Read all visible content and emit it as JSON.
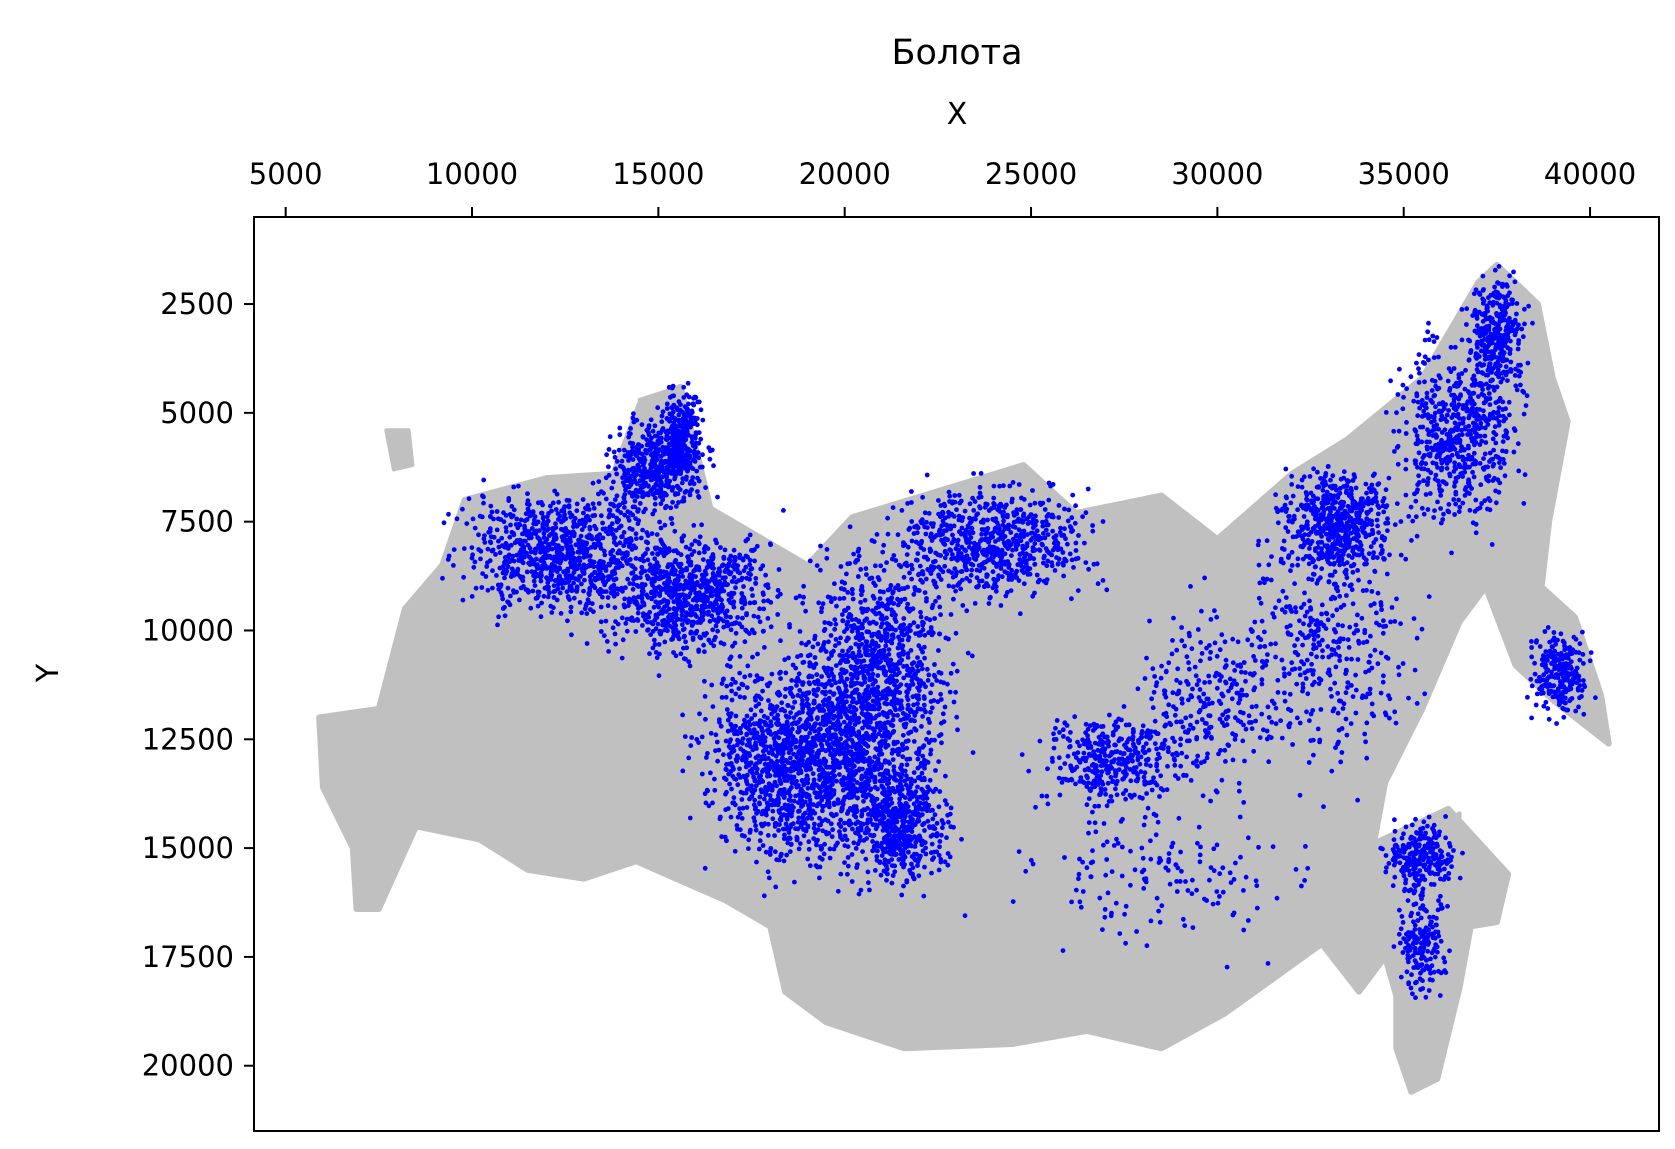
{
  "chart_data": {
    "type": "scatter",
    "title": "Болота",
    "xlabel": "X",
    "ylabel": "Y",
    "x_axis_position": "top",
    "y_axis_inverted": true,
    "xlim": [
      4150,
      41850
    ],
    "ylim": [
      21500,
      500
    ],
    "xticks": [
      5000,
      10000,
      15000,
      20000,
      25000,
      30000,
      35000,
      40000
    ],
    "xtick_labels": [
      "5000",
      "10000",
      "15000",
      "20000",
      "25000",
      "30000",
      "35000",
      "40000"
    ],
    "yticks": [
      2500,
      5000,
      7500,
      10000,
      12500,
      15000,
      17500,
      20000
    ],
    "ytick_labels": [
      "2500",
      "5000",
      "7500",
      "10000",
      "12500",
      "15000",
      "17500",
      "20000"
    ],
    "grid": false,
    "colors": {
      "background_layer": "#c0c0c0",
      "points": "#0000ff"
    },
    "background_layer": {
      "type": "area",
      "outline": [
        [
          5900,
          12000
        ],
        [
          7500,
          11800
        ],
        [
          8200,
          9500
        ],
        [
          9200,
          8500
        ],
        [
          9800,
          7000
        ],
        [
          12000,
          6500
        ],
        [
          13800,
          6400
        ],
        [
          14500,
          4800
        ],
        [
          15600,
          4400
        ],
        [
          16400,
          7200
        ],
        [
          19000,
          8500
        ],
        [
          20200,
          7400
        ],
        [
          24800,
          6200
        ],
        [
          26200,
          7300
        ],
        [
          28500,
          6900
        ],
        [
          30000,
          7900
        ],
        [
          32000,
          6400
        ],
        [
          33500,
          5600
        ],
        [
          35500,
          4200
        ],
        [
          37000,
          2000
        ],
        [
          37500,
          1600
        ],
        [
          38600,
          2500
        ],
        [
          39000,
          4200
        ],
        [
          39400,
          5200
        ],
        [
          38900,
          7500
        ],
        [
          38700,
          9000
        ],
        [
          39600,
          9700
        ],
        [
          40300,
          11500
        ],
        [
          40500,
          12600
        ],
        [
          39000,
          11600
        ],
        [
          38000,
          10800
        ],
        [
          37200,
          9000
        ],
        [
          36500,
          9800
        ],
        [
          35500,
          11800
        ],
        [
          34500,
          13500
        ],
        [
          34200,
          14900
        ],
        [
          36200,
          14100
        ],
        [
          37800,
          15600
        ],
        [
          37500,
          16700
        ],
        [
          36800,
          16800
        ],
        [
          36500,
          18200
        ],
        [
          35900,
          20300
        ],
        [
          35200,
          20600
        ],
        [
          34800,
          19600
        ],
        [
          34800,
          18400
        ],
        [
          34500,
          17500
        ],
        [
          33800,
          18300
        ],
        [
          32800,
          17200
        ],
        [
          31500,
          18000
        ],
        [
          30200,
          18800
        ],
        [
          28500,
          19600
        ],
        [
          26500,
          19200
        ],
        [
          24500,
          19500
        ],
        [
          21600,
          19600
        ],
        [
          19500,
          19000
        ],
        [
          18400,
          18300
        ],
        [
          18000,
          16800
        ],
        [
          16800,
          16200
        ],
        [
          14400,
          15300
        ],
        [
          13000,
          15700
        ],
        [
          11500,
          15500
        ],
        [
          10200,
          14800
        ],
        [
          8500,
          14500
        ],
        [
          7500,
          16400
        ],
        [
          6900,
          16400
        ],
        [
          6800,
          15000
        ],
        [
          6000,
          13600
        ]
      ],
      "islands": [
        [
          [
            7700,
            5400
          ],
          [
            8300,
            5400
          ],
          [
            8400,
            6200
          ],
          [
            7900,
            6300
          ]
        ],
        [
          [
            14500,
            4700
          ],
          [
            15600,
            4400
          ],
          [
            16000,
            6200
          ],
          [
            15200,
            6800
          ],
          [
            14700,
            6100
          ]
        ],
        [
          [
            36000,
            14500
          ],
          [
            36500,
            14200
          ],
          [
            36300,
            18300
          ],
          [
            35700,
            19600
          ],
          [
            35500,
            18200
          ]
        ]
      ]
    },
    "series": [
      {
        "type": "scatter",
        "clusters": [
          {
            "cx": 12500,
            "cy": 8200,
            "rx": 2500,
            "ry": 1300,
            "n": 900
          },
          {
            "cx": 15800,
            "cy": 9200,
            "rx": 2200,
            "ry": 1300,
            "n": 800
          },
          {
            "cx": 15000,
            "cy": 6300,
            "rx": 1200,
            "ry": 1000,
            "n": 450
          },
          {
            "cx": 15600,
            "cy": 5500,
            "rx": 500,
            "ry": 1000,
            "n": 250
          },
          {
            "cx": 19000,
            "cy": 13000,
            "rx": 2500,
            "ry": 2200,
            "n": 1600
          },
          {
            "cx": 21000,
            "cy": 11000,
            "rx": 1800,
            "ry": 2600,
            "n": 1000
          },
          {
            "cx": 24000,
            "cy": 8000,
            "rx": 2400,
            "ry": 1200,
            "n": 700
          },
          {
            "cx": 21500,
            "cy": 14500,
            "rx": 1300,
            "ry": 1300,
            "n": 500
          },
          {
            "cx": 27200,
            "cy": 13000,
            "rx": 1800,
            "ry": 1000,
            "n": 380
          },
          {
            "cx": 33200,
            "cy": 7600,
            "rx": 1400,
            "ry": 1200,
            "n": 600
          },
          {
            "cx": 36500,
            "cy": 5500,
            "rx": 1500,
            "ry": 2000,
            "n": 600
          },
          {
            "cx": 37500,
            "cy": 3200,
            "rx": 700,
            "ry": 1200,
            "n": 300
          },
          {
            "cx": 39200,
            "cy": 11000,
            "rx": 700,
            "ry": 900,
            "n": 250
          },
          {
            "cx": 35500,
            "cy": 15200,
            "rx": 900,
            "ry": 800,
            "n": 250
          },
          {
            "cx": 35500,
            "cy": 17300,
            "rx": 600,
            "ry": 1100,
            "n": 180
          },
          {
            "cx": 29800,
            "cy": 11500,
            "rx": 1800,
            "ry": 2000,
            "n": 250
          },
          {
            "cx": 33000,
            "cy": 10500,
            "rx": 2300,
            "ry": 2500,
            "n": 350
          },
          {
            "cx": 28500,
            "cy": 15500,
            "rx": 3500,
            "ry": 1500,
            "n": 160
          }
        ]
      }
    ]
  }
}
